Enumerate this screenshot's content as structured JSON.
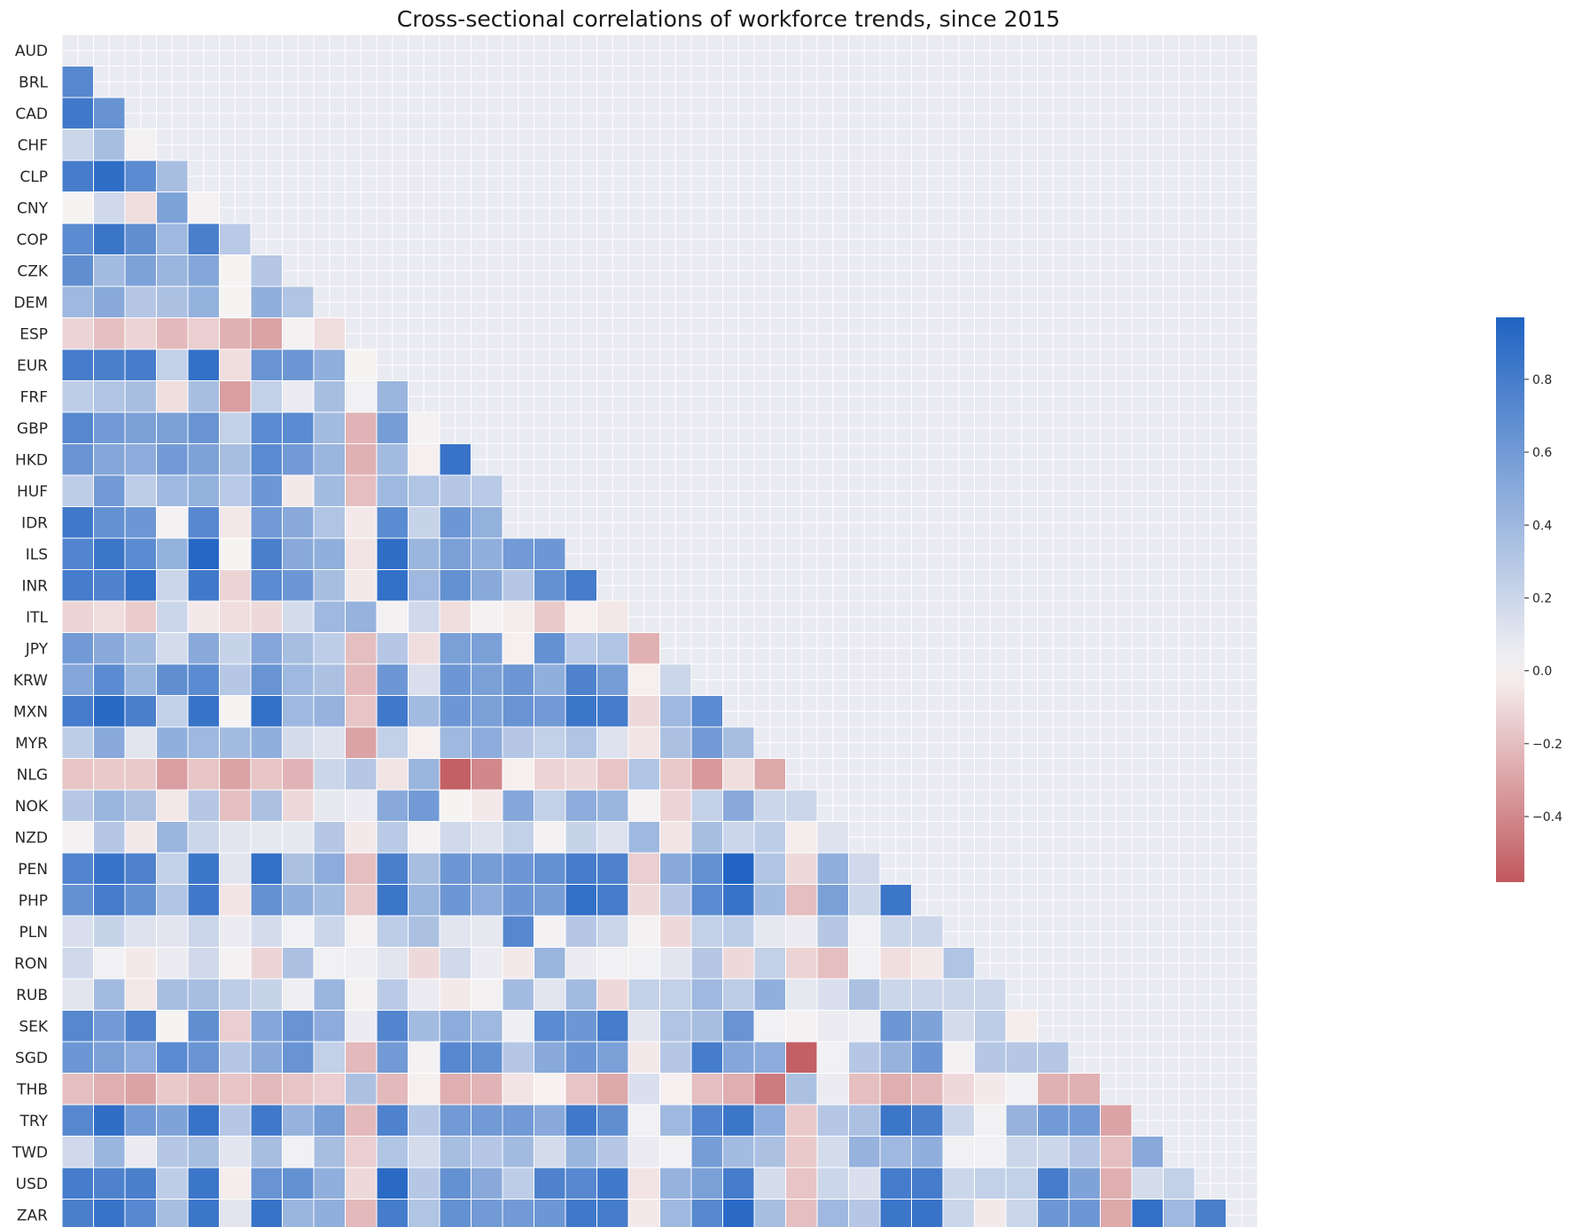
{
  "chart_data": {
    "type": "heatmap",
    "title": "Cross-sectional correlations of workforce trends, since 2015",
    "labels": [
      "AUD",
      "BRL",
      "CAD",
      "CHF",
      "CLP",
      "CNY",
      "COP",
      "CZK",
      "DEM",
      "ESP",
      "EUR",
      "FRF",
      "GBP",
      "HKD",
      "HUF",
      "IDR",
      "ILS",
      "INR",
      "ITL",
      "JPY",
      "KRW",
      "MXN",
      "MYR",
      "NLG",
      "NOK",
      "NZD",
      "PEN",
      "PHP",
      "PLN",
      "RON",
      "RUB",
      "SEK",
      "SGD",
      "THB",
      "TRY",
      "TWD",
      "USD",
      "ZAR"
    ],
    "mask": "upper triangle incl. diagonal",
    "colormap": {
      "vmin": -0.58,
      "vmax": 0.97,
      "center": 0.0,
      "negative_color": "#c0585d",
      "neutral_color": "#f8f4f4",
      "positive_color": "#1f63c2"
    },
    "colorbar_ticks": [
      "0.8",
      "0.6",
      "0.4",
      "0.2",
      "0.0",
      "−0.2",
      "−0.4"
    ],
    "colorbar_tick_values": [
      0.8,
      0.6,
      0.4,
      0.2,
      0.0,
      -0.2,
      -0.4
    ],
    "grid": true,
    "rows": [
      [],
      [
        0.72
      ],
      [
        0.82,
        0.65
      ],
      [
        0.2,
        0.36,
        0.02
      ],
      [
        0.8,
        0.9,
        0.7,
        0.36
      ],
      [
        0.01,
        0.18,
        -0.08,
        0.55,
        0.02
      ],
      [
        0.7,
        0.85,
        0.68,
        0.4,
        0.78,
        0.28
      ],
      [
        0.68,
        0.38,
        0.55,
        0.42,
        0.52,
        0.01,
        0.3
      ],
      [
        0.4,
        0.5,
        0.3,
        0.34,
        0.45,
        0.01,
        0.46,
        0.32
      ],
      [
        -0.12,
        -0.2,
        -0.12,
        -0.22,
        -0.14,
        -0.25,
        -0.3,
        0.02,
        -0.08
      ],
      [
        0.8,
        0.78,
        0.8,
        0.24,
        0.88,
        -0.08,
        0.64,
        0.62,
        0.46,
        0.01
      ],
      [
        0.26,
        0.32,
        0.36,
        -0.08,
        0.36,
        -0.32,
        0.24,
        0.06,
        0.36,
        0.03,
        0.42
      ],
      [
        0.72,
        0.6,
        0.56,
        0.56,
        0.64,
        0.24,
        0.7,
        0.7,
        0.38,
        -0.24,
        0.58,
        0.02
      ],
      [
        0.64,
        0.52,
        0.48,
        0.6,
        0.55,
        0.36,
        0.7,
        0.6,
        0.42,
        -0.25,
        0.38,
        -0.02,
        0.86
      ],
      [
        0.26,
        0.6,
        0.26,
        0.4,
        0.45,
        0.28,
        0.62,
        -0.04,
        0.38,
        -0.2,
        0.4,
        0.32,
        0.3,
        0.28
      ],
      [
        0.82,
        0.66,
        0.62,
        0.02,
        0.72,
        -0.05,
        0.6,
        0.5,
        0.32,
        -0.04,
        0.7,
        0.22,
        0.62,
        0.45
      ],
      [
        0.74,
        0.84,
        0.7,
        0.45,
        0.94,
        0.01,
        0.78,
        0.5,
        0.46,
        -0.06,
        0.9,
        0.42,
        0.56,
        0.46,
        0.6,
        0.62
      ],
      [
        0.8,
        0.76,
        0.88,
        0.2,
        0.82,
        -0.12,
        0.7,
        0.62,
        0.36,
        -0.04,
        0.88,
        0.4,
        0.66,
        0.5,
        0.3,
        0.66,
        0.8
      ],
      [
        -0.12,
        -0.08,
        -0.15,
        0.2,
        -0.04,
        -0.08,
        -0.1,
        0.16,
        0.4,
        0.44,
        0.02,
        0.18,
        -0.08,
        0.02,
        -0.03,
        -0.16,
        -0.02,
        -0.05
      ],
      [
        0.6,
        0.5,
        0.38,
        0.16,
        0.5,
        0.22,
        0.52,
        0.36,
        0.26,
        -0.2,
        0.3,
        -0.08,
        0.56,
        0.56,
        -0.02,
        0.66,
        0.28,
        0.32,
        -0.25
      ],
      [
        0.52,
        0.7,
        0.42,
        0.68,
        0.7,
        0.3,
        0.64,
        0.4,
        0.34,
        -0.22,
        0.62,
        0.14,
        0.62,
        0.56,
        0.62,
        0.46,
        0.76,
        0.58,
        -0.02,
        0.2
      ],
      [
        0.8,
        0.93,
        0.78,
        0.24,
        0.86,
        0.01,
        0.88,
        0.4,
        0.44,
        -0.18,
        0.82,
        0.38,
        0.62,
        0.56,
        0.64,
        0.6,
        0.84,
        0.8,
        -0.1,
        0.4,
        0.7
      ],
      [
        0.26,
        0.5,
        0.1,
        0.46,
        0.4,
        0.38,
        0.46,
        0.16,
        0.12,
        -0.3,
        0.24,
        -0.02,
        0.4,
        0.48,
        0.3,
        0.24,
        0.32,
        0.12,
        -0.06,
        0.34,
        0.6,
        0.36
      ],
      [
        -0.18,
        -0.16,
        -0.16,
        -0.32,
        -0.18,
        -0.3,
        -0.18,
        -0.24,
        0.2,
        0.3,
        -0.06,
        0.42,
        -0.55,
        -0.4,
        -0.02,
        -0.12,
        -0.1,
        -0.18,
        0.32,
        -0.16,
        -0.34,
        -0.08,
        -0.28
      ],
      [
        0.3,
        0.42,
        0.34,
        -0.05,
        0.3,
        -0.2,
        0.34,
        -0.1,
        0.08,
        0.06,
        0.5,
        0.6,
        0.01,
        -0.04,
        0.52,
        0.24,
        0.48,
        0.42,
        0.02,
        -0.12,
        0.24,
        0.5,
        0.2,
        0.2
      ],
      [
        0.02,
        0.3,
        -0.04,
        0.42,
        0.2,
        0.1,
        0.08,
        0.08,
        0.3,
        -0.04,
        0.28,
        0.02,
        0.18,
        0.12,
        0.24,
        0.02,
        0.22,
        0.12,
        0.4,
        -0.06,
        0.36,
        0.2,
        0.26,
        -0.03,
        0.12
      ],
      [
        0.74,
        0.86,
        0.76,
        0.24,
        0.84,
        0.1,
        0.88,
        0.34,
        0.48,
        -0.2,
        0.78,
        0.36,
        0.62,
        0.58,
        0.62,
        0.66,
        0.8,
        0.76,
        -0.14,
        0.5,
        0.66,
        0.96,
        0.32,
        -0.1,
        0.46,
        0.18
      ],
      [
        0.66,
        0.8,
        0.66,
        0.32,
        0.82,
        -0.06,
        0.66,
        0.46,
        0.38,
        -0.16,
        0.84,
        0.42,
        0.62,
        0.48,
        0.62,
        0.58,
        0.88,
        0.8,
        -0.1,
        0.3,
        0.7,
        0.86,
        0.38,
        -0.2,
        0.56,
        0.2,
        0.84
      ],
      [
        0.14,
        0.22,
        0.12,
        0.1,
        0.2,
        0.06,
        0.16,
        0.03,
        0.2,
        0.02,
        0.26,
        0.34,
        0.1,
        0.08,
        0.72,
        0.02,
        0.3,
        0.2,
        0.02,
        -0.1,
        0.24,
        0.26,
        0.08,
        0.06,
        0.3,
        0.03,
        0.2,
        0.2
      ],
      [
        0.18,
        0.03,
        -0.04,
        0.06,
        0.18,
        0.02,
        -0.12,
        0.34,
        0.03,
        0.04,
        0.1,
        -0.1,
        0.18,
        0.06,
        -0.04,
        0.42,
        0.06,
        0.03,
        0.03,
        0.1,
        0.3,
        -0.1,
        0.24,
        -0.12,
        -0.2,
        0.03,
        -0.08,
        -0.05,
        0.32
      ],
      [
        0.1,
        0.38,
        -0.05,
        0.36,
        0.36,
        0.26,
        0.22,
        0.04,
        0.42,
        0.02,
        0.28,
        0.06,
        -0.04,
        0.02,
        0.38,
        0.1,
        0.38,
        -0.1,
        0.24,
        0.24,
        0.4,
        0.26,
        0.46,
        0.08,
        0.14,
        0.34,
        0.2,
        0.2,
        0.2,
        0.2
      ],
      [
        0.72,
        0.6,
        0.76,
        0.01,
        0.68,
        -0.14,
        0.52,
        0.64,
        0.48,
        0.06,
        0.74,
        0.38,
        0.48,
        0.4,
        0.04,
        0.7,
        0.62,
        0.8,
        0.1,
        0.32,
        0.36,
        0.64,
        0.03,
        0.02,
        0.06,
        0.04,
        0.62,
        0.54,
        0.16,
        0.26,
        -0.03
      ],
      [
        0.62,
        0.56,
        0.48,
        0.7,
        0.64,
        0.3,
        0.5,
        0.64,
        0.24,
        -0.22,
        0.6,
        0.02,
        0.72,
        0.66,
        0.3,
        0.5,
        0.62,
        0.56,
        -0.04,
        0.3,
        0.8,
        0.52,
        0.48,
        -0.55,
        0.03,
        0.3,
        0.44,
        0.62,
        0.02,
        0.3,
        0.3,
        0.3
      ],
      [
        -0.2,
        -0.26,
        -0.3,
        -0.16,
        -0.22,
        -0.18,
        -0.22,
        -0.18,
        -0.14,
        0.34,
        -0.22,
        -0.02,
        -0.26,
        -0.24,
        -0.06,
        -0.01,
        -0.18,
        -0.28,
        0.14,
        -0.02,
        -0.2,
        -0.26,
        -0.45,
        0.34,
        0.06,
        -0.2,
        -0.26,
        -0.22,
        -0.1,
        -0.04,
        0.03,
        -0.25,
        -0.25
      ],
      [
        0.72,
        0.9,
        0.6,
        0.54,
        0.86,
        0.3,
        0.82,
        0.44,
        0.58,
        -0.22,
        0.76,
        0.3,
        0.6,
        0.6,
        0.6,
        0.5,
        0.82,
        0.68,
        0.03,
        0.4,
        0.74,
        0.84,
        0.48,
        -0.16,
        0.3,
        0.34,
        0.84,
        0.78,
        0.2,
        0.03,
        0.44,
        0.6,
        0.6,
        -0.3
      ],
      [
        0.18,
        0.42,
        0.06,
        0.3,
        0.36,
        0.1,
        0.36,
        0.03,
        0.36,
        -0.14,
        0.32,
        0.16,
        0.36,
        0.3,
        0.38,
        0.16,
        0.42,
        0.3,
        0.06,
        0.03,
        0.58,
        0.38,
        0.34,
        -0.16,
        0.16,
        0.44,
        0.4,
        0.46,
        0.03,
        0.03,
        0.2,
        0.2,
        0.3,
        -0.2,
        0.5
      ],
      [
        0.8,
        0.76,
        0.78,
        0.26,
        0.84,
        -0.03,
        0.64,
        0.66,
        0.46,
        -0.1,
        0.92,
        0.3,
        0.66,
        0.5,
        0.26,
        0.76,
        0.72,
        0.82,
        -0.06,
        0.44,
        0.56,
        0.8,
        0.16,
        -0.18,
        0.2,
        0.14,
        0.8,
        0.8,
        0.2,
        0.24,
        0.24,
        0.8,
        0.54,
        -0.26,
        0.16,
        0.24
      ],
      [
        0.78,
        0.86,
        0.72,
        0.36,
        0.84,
        0.1,
        0.86,
        0.42,
        0.46,
        -0.22,
        0.8,
        0.32,
        0.66,
        0.6,
        0.6,
        0.62,
        0.82,
        0.8,
        -0.04,
        0.4,
        0.72,
        0.92,
        0.36,
        -0.2,
        0.4,
        0.3,
        0.84,
        0.86,
        0.2,
        -0.04,
        0.2,
        0.62,
        0.62,
        -0.28,
        0.88,
        0.4,
        0.78
      ]
    ]
  }
}
